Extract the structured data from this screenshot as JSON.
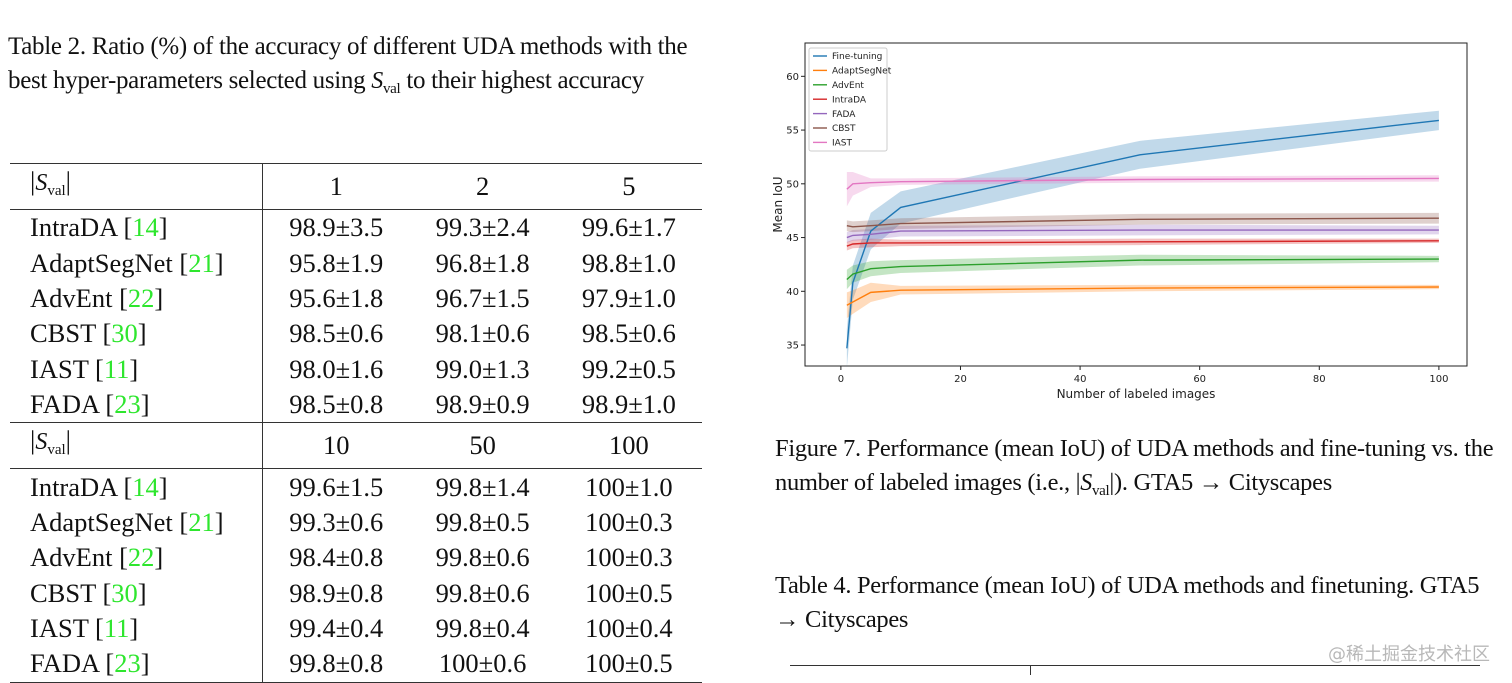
{
  "table2": {
    "caption_before": "Table 2. Ratio (%) of the accuracy of different UDA methods with the best hyper-parameters selected using ",
    "caption_math": "S",
    "caption_sub": "val",
    "caption_after": " to their highest accuracy",
    "header_label_math": "S",
    "header_label_sub": "val",
    "blocks": [
      {
        "columns": [
          "1",
          "2",
          "5"
        ],
        "rows": [
          {
            "method": "IntraDA",
            "ref": "14",
            "values": [
              "98.9±3.5",
              "99.3±2.4",
              "99.6±1.7"
            ]
          },
          {
            "method": "AdaptSegNet",
            "ref": "21",
            "values": [
              "95.8±1.9",
              "96.8±1.8",
              "98.8±1.0"
            ]
          },
          {
            "method": "AdvEnt",
            "ref": "22",
            "values": [
              "95.6±1.8",
              "96.7±1.5",
              "97.9±1.0"
            ]
          },
          {
            "method": "CBST",
            "ref": "30",
            "values": [
              "98.5±0.6",
              "98.1±0.6",
              "98.5±0.6"
            ]
          },
          {
            "method": "IAST",
            "ref": "11",
            "values": [
              "98.0±1.6",
              "99.0±1.3",
              "99.2±0.5"
            ]
          },
          {
            "method": "FADA",
            "ref": "23",
            "values": [
              "98.5±0.8",
              "98.9±0.9",
              "98.9±1.0"
            ]
          }
        ]
      },
      {
        "columns": [
          "10",
          "50",
          "100"
        ],
        "rows": [
          {
            "method": "IntraDA",
            "ref": "14",
            "values": [
              "99.6±1.5",
              "99.8±1.4",
              "100±1.0"
            ]
          },
          {
            "method": "AdaptSegNet",
            "ref": "21",
            "values": [
              "99.3±0.6",
              "99.8±0.5",
              "100±0.3"
            ]
          },
          {
            "method": "AdvEnt",
            "ref": "22",
            "values": [
              "98.4±0.8",
              "99.8±0.6",
              "100±0.3"
            ]
          },
          {
            "method": "CBST",
            "ref": "30",
            "values": [
              "98.9±0.8",
              "99.8±0.6",
              "100±0.5"
            ]
          },
          {
            "method": "IAST",
            "ref": "11",
            "values": [
              "99.4±0.4",
              "99.8±0.4",
              "100±0.4"
            ]
          },
          {
            "method": "FADA",
            "ref": "23",
            "values": [
              "99.8±0.8",
              "100±0.6",
              "100±0.5"
            ]
          }
        ]
      }
    ],
    "ref_color": "#2ee62e"
  },
  "figure7": {
    "caption_before": "Figure 7.  Performance (mean IoU) of UDA methods and fine-tuning vs.  the number of labeled images (i.e., ",
    "caption_math": "S",
    "caption_sub": "val",
    "caption_after": ").  GTA5 → Cityscapes"
  },
  "table4": {
    "caption": "Table 4.  Performance (mean IoU) of UDA methods and finetuning. GTA5 → Cityscapes"
  },
  "watermark": "@稀土掘金技术社区",
  "chart_data": {
    "type": "line",
    "xlabel": "Number of labeled images",
    "ylabel": "Mean IoU",
    "xlim": [
      -6,
      104.7
    ],
    "ylim": [
      33.05,
      63.1
    ],
    "xticks": [
      0,
      20,
      40,
      60,
      80,
      100
    ],
    "yticks": [
      35,
      40,
      45,
      50,
      55,
      60
    ],
    "grid": false,
    "legend_position": "top-left",
    "x": [
      1,
      2,
      5,
      10,
      50,
      100
    ],
    "series": [
      {
        "name": "Fine-tuning",
        "color": "#1f77b4",
        "values": [
          34.7,
          40.8,
          45.6,
          47.8,
          52.7,
          55.9
        ],
        "band": [
          1.8,
          1.6,
          1.7,
          1.5,
          1.3,
          0.9
        ]
      },
      {
        "name": "AdaptSegNet",
        "color": "#ff7f0e",
        "values": [
          38.7,
          39.0,
          39.9,
          40.1,
          40.3,
          40.4
        ],
        "band": [
          1.2,
          1.1,
          0.9,
          0.4,
          0.3,
          0.2
        ]
      },
      {
        "name": "AdvEnt",
        "color": "#2ca02c",
        "values": [
          41.1,
          41.6,
          42.1,
          42.3,
          42.9,
          43.0
        ],
        "band": [
          0.9,
          0.8,
          0.7,
          0.6,
          0.5,
          0.3
        ]
      },
      {
        "name": "IntraDA",
        "color": "#d62728",
        "values": [
          44.2,
          44.4,
          44.5,
          44.5,
          44.6,
          44.7
        ],
        "band": [
          0.4,
          0.4,
          0.4,
          0.3,
          0.3,
          0.2
        ]
      },
      {
        "name": "FADA",
        "color": "#9467bd",
        "values": [
          45.0,
          45.2,
          45.3,
          45.6,
          45.7,
          45.7
        ],
        "band": [
          0.5,
          0.5,
          0.5,
          0.5,
          0.5,
          0.4
        ]
      },
      {
        "name": "CBST",
        "color": "#8c564b",
        "values": [
          46.1,
          46.0,
          46.1,
          46.3,
          46.7,
          46.8
        ],
        "band": [
          0.5,
          0.5,
          0.5,
          0.5,
          0.5,
          0.5
        ]
      },
      {
        "name": "IAST",
        "color": "#e377c2",
        "values": [
          49.5,
          50.0,
          50.1,
          50.2,
          50.4,
          50.5
        ],
        "band": [
          1.6,
          1.1,
          0.4,
          0.3,
          0.3,
          0.3
        ]
      }
    ]
  }
}
